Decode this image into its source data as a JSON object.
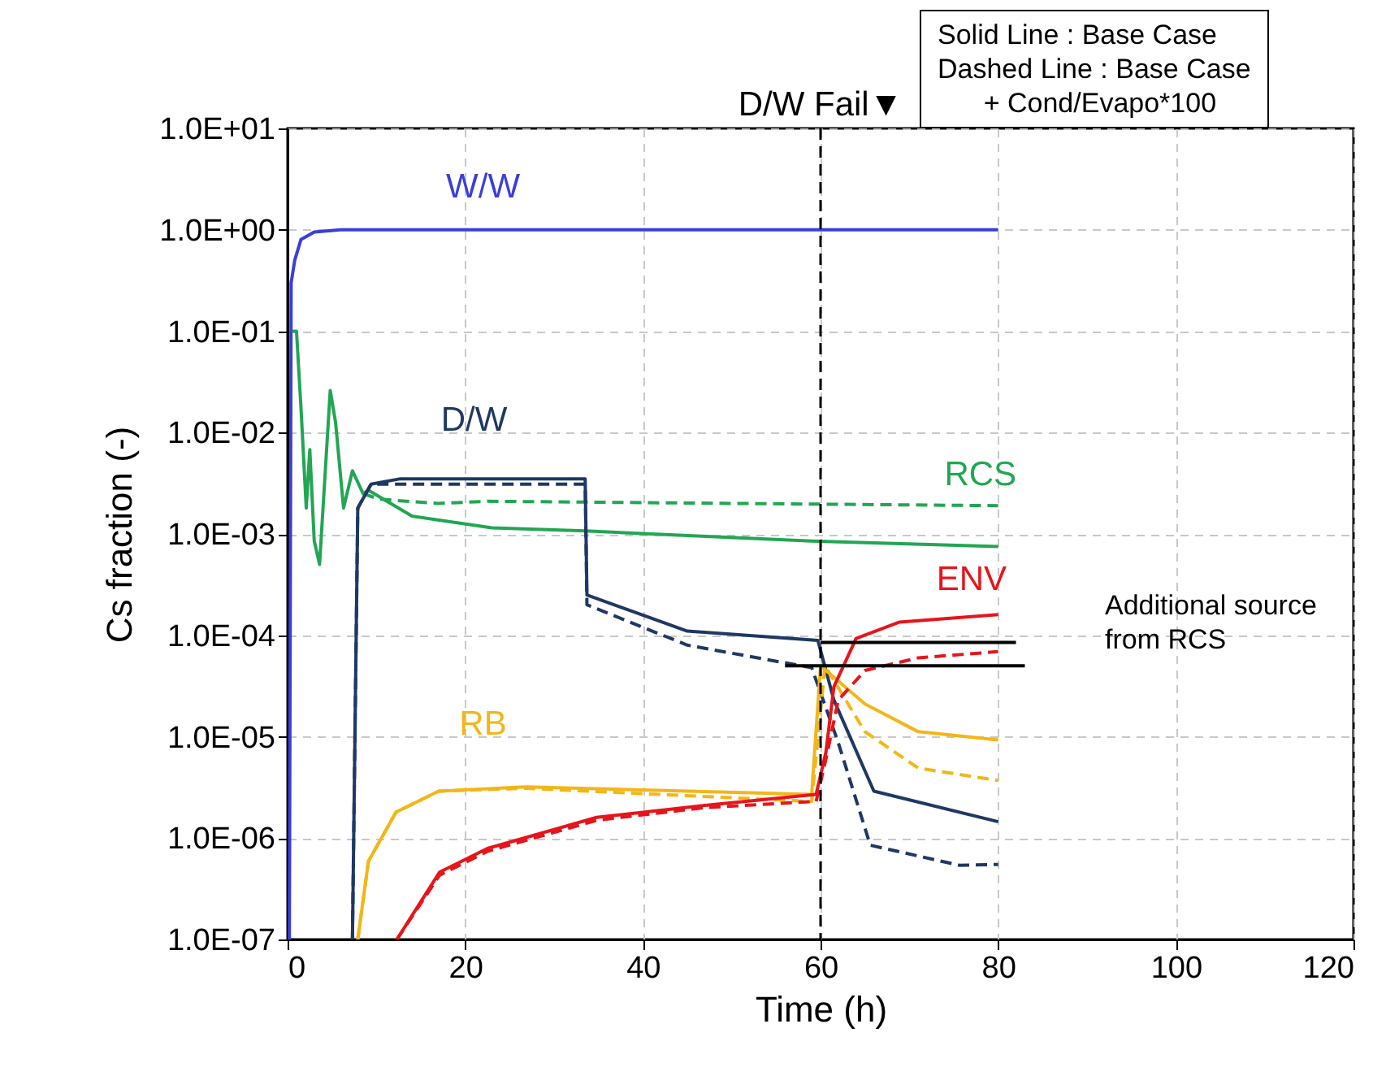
{
  "chart_data": {
    "type": "line",
    "xlabel": "Time (h)",
    "ylabel": "Cs fraction (-)",
    "log": "y",
    "grid": true,
    "xlim": [
      0,
      120
    ],
    "xticks": [
      0,
      20,
      40,
      60,
      80,
      100,
      120
    ],
    "ylim": [
      1e-07,
      10
    ],
    "yticks": [
      {
        "value": 1e-07,
        "label": "1.0E-07"
      },
      {
        "value": 1e-06,
        "label": "1.0E-06"
      },
      {
        "value": 1e-05,
        "label": "1.0E-05"
      },
      {
        "value": 0.0001,
        "label": "1.0E-04"
      },
      {
        "value": 0.001,
        "label": "1.0E-03"
      },
      {
        "value": 0.01,
        "label": "1.0E-02"
      },
      {
        "value": 0.1,
        "label": "1.0E-01"
      },
      {
        "value": 1,
        "label": "1.0E+00"
      },
      {
        "value": 10,
        "label": "1.0E+01"
      }
    ],
    "series": [
      {
        "name": "W/W",
        "color": "#3a3fd8",
        "line_style": "solid",
        "x": [
          0.2,
          0.4,
          0.8,
          1.5,
          3,
          6,
          80
        ],
        "values": [
          1e-07,
          0.3,
          0.5,
          0.8,
          0.95,
          1.0,
          1.0
        ]
      },
      {
        "name": "RCS",
        "color": "#22a653",
        "line_style": "solid",
        "x": [
          0.5,
          1.0,
          1.5,
          2.1,
          2.5,
          3.0,
          3.6,
          4.8,
          5.4,
          6.3,
          7.3,
          8.5,
          9.1,
          14,
          23,
          33.5,
          59,
          80
        ],
        "values": [
          0.1,
          0.1,
          0.018,
          0.0018,
          0.0068,
          0.00085,
          0.0005,
          0.026,
          0.0126,
          0.0018,
          0.0042,
          0.0025,
          0.0027,
          0.0015,
          0.00115,
          0.00107,
          0.00085,
          0.00075
        ]
      },
      {
        "color": "#22a653",
        "line_style": "dashed",
        "x": [
          8.5,
          10.3,
          17,
          22.5,
          80
        ],
        "values": [
          0.0025,
          0.0022,
          0.002,
          0.0021,
          0.0019
        ]
      },
      {
        "name": "D/W",
        "color": "#1f3864",
        "line_style": "solid",
        "x": [
          7.3,
          7.9,
          9.4,
          12.7,
          33.5,
          33.7,
          45,
          59.7,
          61.5,
          66,
          80
        ],
        "values": [
          1e-07,
          0.0018,
          0.0031,
          0.0035,
          0.0035,
          0.00025,
          0.00011,
          8.9e-05,
          2.3e-05,
          2.9e-06,
          1.45e-06
        ]
      },
      {
        "color": "#1f3864",
        "line_style": "dashed",
        "x": [
          7.3,
          7.9,
          9.4,
          12.7,
          33.5,
          33.7,
          45,
          59,
          62,
          65.6,
          75.6,
          80
        ],
        "values": [
          1e-07,
          0.0018,
          0.0031,
          0.0031,
          0.0031,
          0.0002,
          8e-05,
          4.8e-05,
          8.7e-06,
          8.5e-07,
          5.4e-07,
          5.5e-07
        ]
      },
      {
        "name": "RB",
        "color": "#f2b619",
        "line_style": "solid",
        "x": [
          7.9,
          9.1,
          12.2,
          17,
          26.8,
          59,
          60,
          65,
          71,
          80
        ],
        "values": [
          1e-07,
          5.9e-07,
          1.8e-06,
          2.9e-06,
          3.2e-06,
          2.7e-06,
          5e-05,
          2.1e-05,
          1.12e-05,
          9.3e-06
        ]
      },
      {
        "color": "#f2b619",
        "line_style": "dashed",
        "x": [
          7.9,
          9.1,
          12.2,
          17,
          26.8,
          59,
          60.5,
          65,
          71,
          80
        ],
        "values": [
          1e-07,
          5.9e-07,
          1.8e-06,
          2.9e-06,
          3.1e-06,
          2.3e-06,
          5e-05,
          1.12e-05,
          4.9e-06,
          3.7e-06
        ]
      },
      {
        "name": "ENV",
        "color": "#e8141b",
        "line_style": "solid",
        "x": [
          12.3,
          17.1,
          22.5,
          34.8,
          47,
          59.5,
          60.6,
          61.5,
          64,
          68.9,
          80
        ],
        "values": [
          1e-07,
          4.6e-07,
          7.9e-07,
          1.6e-06,
          2.1e-06,
          2.7e-06,
          7e-06,
          3.1e-05,
          9.3e-05,
          0.000135,
          0.00016
        ]
      },
      {
        "color": "#e8141b",
        "line_style": "dashed",
        "x": [
          12.3,
          17.1,
          22.5,
          34.8,
          47,
          59.5,
          60.6,
          62,
          65,
          71,
          80
        ],
        "values": [
          1e-07,
          4.3e-07,
          7.4e-07,
          1.5e-06,
          2e-06,
          2.3e-06,
          6e-06,
          2.3e-05,
          4.5e-05,
          6e-05,
          6.9e-05
        ]
      },
      {
        "color": "#000000",
        "line_style": "solid",
        "x": [
          60,
          82
        ],
        "values": [
          8.5e-05,
          8.5e-05
        ]
      },
      {
        "color": "#000000",
        "line_style": "solid",
        "x": [
          56,
          83
        ],
        "values": [
          5e-05,
          5e-05
        ]
      }
    ],
    "ref_lines": [
      {
        "axis": "x",
        "value": 60,
        "label": "D/W Fail▼",
        "color": "#000000",
        "line_style": "dashed"
      }
    ],
    "annotations": [
      "Solid Line : Base Case\nDashed Line : Base Case\n      + Cond/Evapo*100",
      "Additional source\nfrom RCS"
    ]
  }
}
